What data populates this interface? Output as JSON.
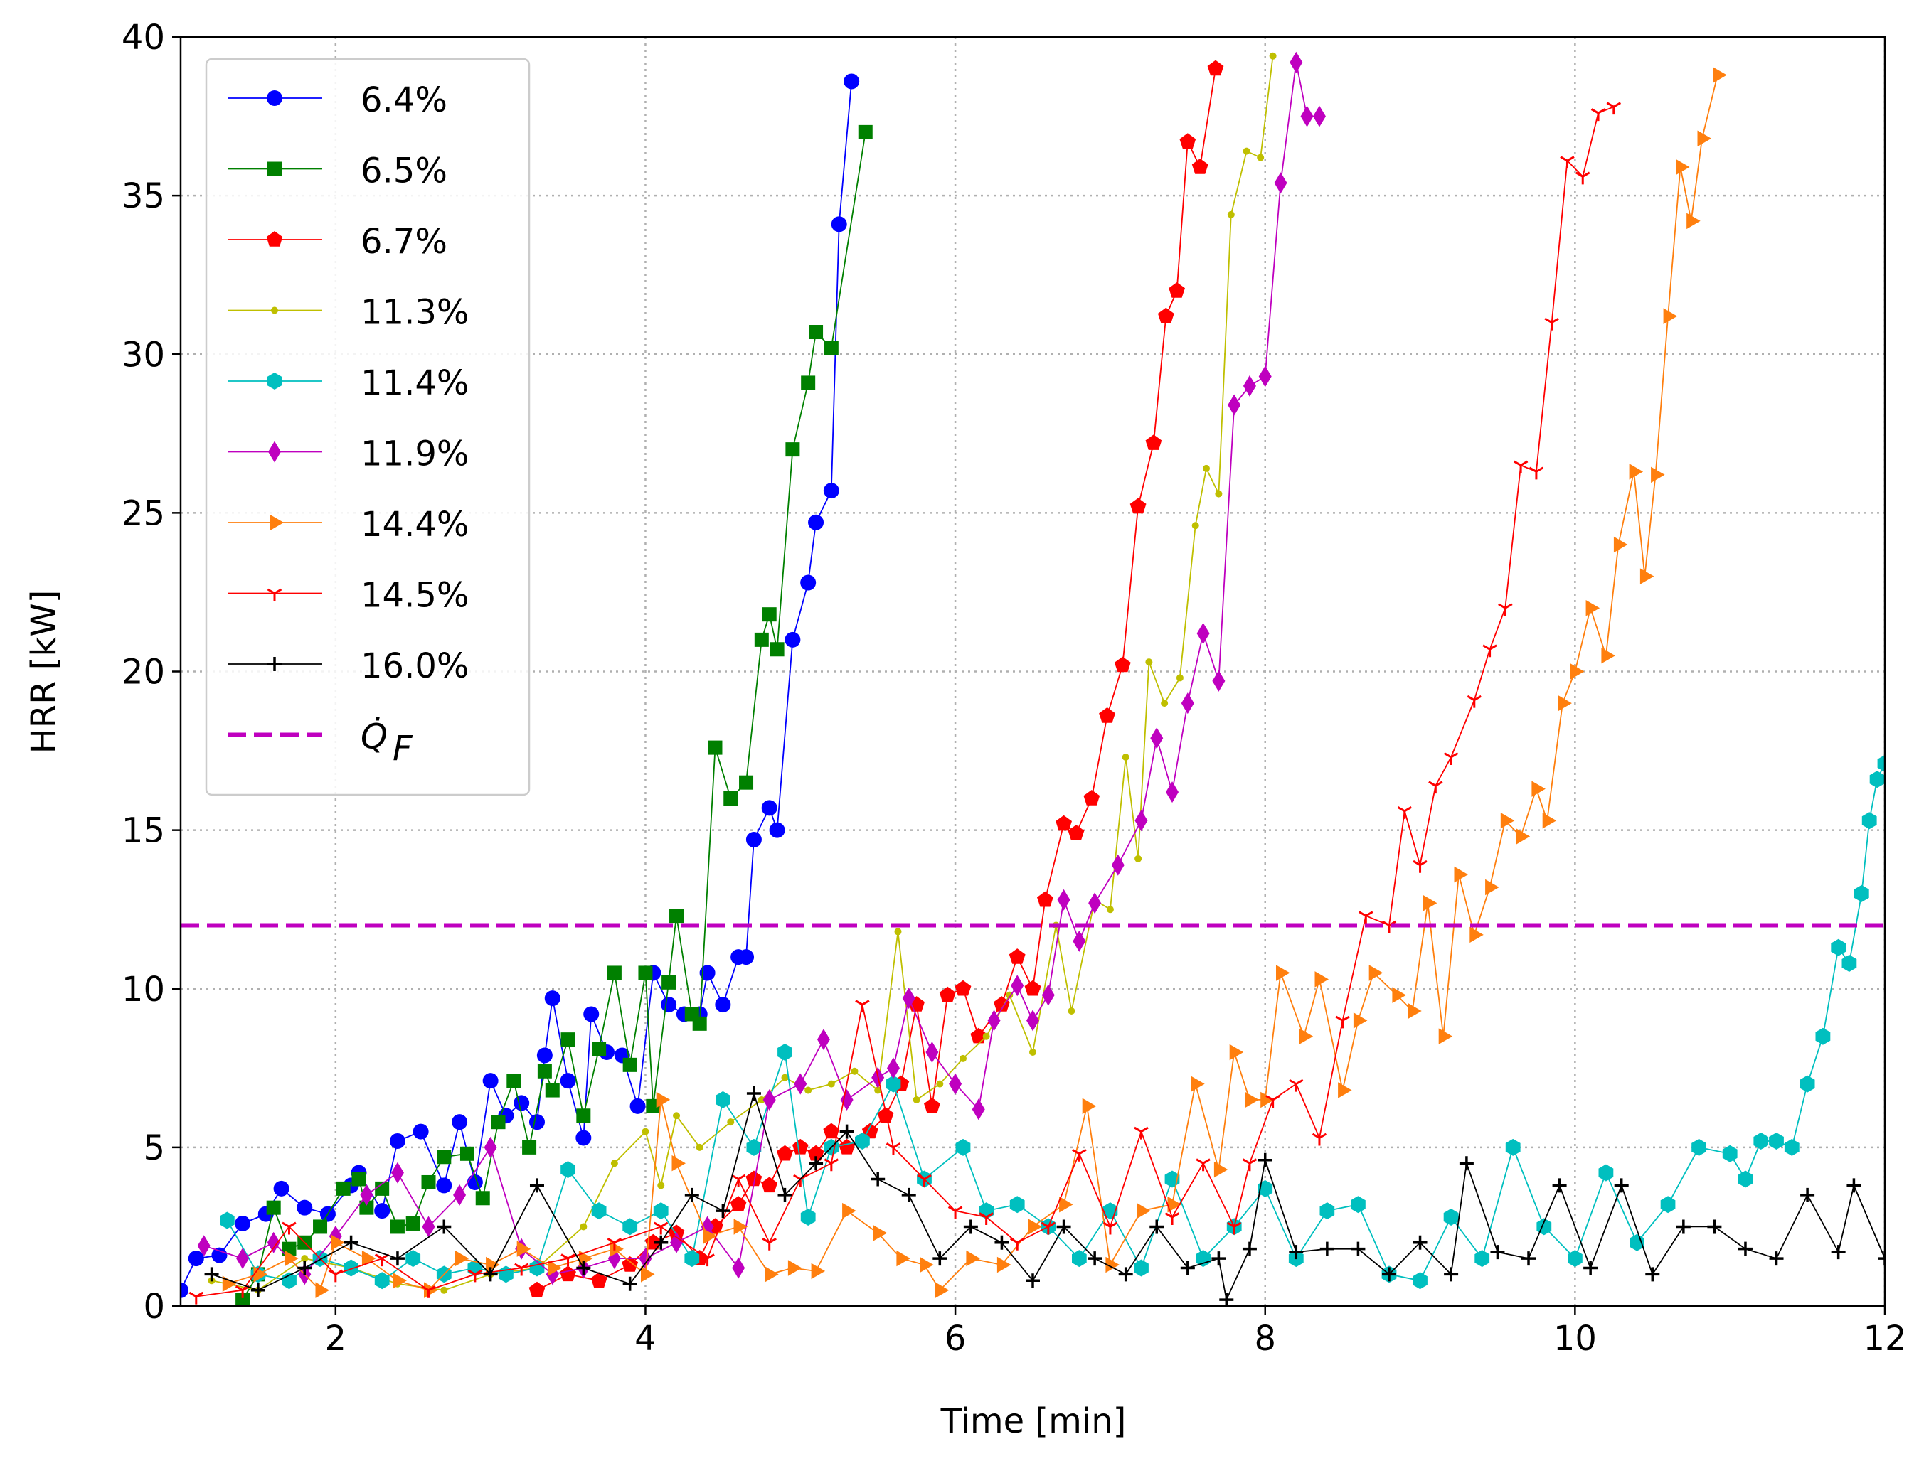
{
  "chart_data": {
    "type": "line",
    "xlabel": "Time [min]",
    "ylabel": "HRR [kW]",
    "xlim": [
      1,
      12
    ],
    "xticks": [
      2,
      4,
      6,
      8,
      10,
      12
    ],
    "ylim": [
      0,
      40
    ],
    "yticks": [
      0,
      5,
      10,
      15,
      20,
      25,
      30,
      35,
      40
    ],
    "grid": true,
    "legend": "upper left",
    "series": [
      {
        "name": "6.4%",
        "color": "#0000ff",
        "marker": "o",
        "x": [
          1.0,
          1.1,
          1.25,
          1.4,
          1.55,
          1.65,
          1.8,
          1.95,
          2.1,
          2.15,
          2.3,
          2.4,
          2.55,
          2.7,
          2.8,
          2.9,
          3.0,
          3.1,
          3.2,
          3.3,
          3.35,
          3.4,
          3.5,
          3.6,
          3.65,
          3.75,
          3.85,
          3.95,
          4.05,
          4.15,
          4.25,
          4.35,
          4.4,
          4.5,
          4.6,
          4.65,
          4.7,
          4.8,
          4.85,
          4.95,
          5.05,
          5.1,
          5.2,
          5.25,
          5.33
        ],
        "values": [
          0.5,
          1.5,
          1.6,
          2.6,
          2.9,
          3.7,
          3.1,
          2.9,
          3.8,
          4.2,
          3.0,
          5.2,
          5.5,
          3.8,
          5.8,
          3.9,
          7.1,
          6.0,
          6.4,
          5.8,
          7.9,
          9.7,
          7.1,
          5.3,
          9.2,
          8.0,
          7.9,
          6.3,
          10.5,
          9.5,
          9.2,
          9.2,
          10.5,
          9.5,
          11.0,
          11.0,
          14.7,
          15.7,
          15.0,
          21.0,
          22.8,
          24.7,
          25.7,
          34.1,
          38.6
        ]
      },
      {
        "name": "6.5%",
        "color": "#008000",
        "marker": "s",
        "x": [
          1.4,
          1.5,
          1.6,
          1.7,
          1.8,
          1.9,
          2.05,
          2.15,
          2.2,
          2.3,
          2.4,
          2.5,
          2.6,
          2.7,
          2.85,
          2.95,
          3.05,
          3.15,
          3.25,
          3.35,
          3.4,
          3.5,
          3.6,
          3.7,
          3.8,
          3.9,
          4.0,
          4.05,
          4.15,
          4.2,
          4.3,
          4.35,
          4.45,
          4.55,
          4.65,
          4.75,
          4.8,
          4.85,
          4.95,
          5.05,
          5.1,
          5.2,
          5.42
        ],
        "values": [
          0.2,
          1.0,
          3.1,
          1.8,
          2.0,
          2.5,
          3.7,
          4.0,
          3.1,
          3.7,
          2.5,
          2.6,
          3.9,
          4.7,
          4.8,
          3.4,
          5.8,
          7.1,
          5.0,
          7.4,
          6.8,
          8.4,
          6.0,
          8.1,
          10.5,
          7.6,
          10.5,
          6.3,
          10.2,
          12.3,
          9.2,
          8.9,
          17.6,
          16.0,
          16.5,
          21.0,
          21.8,
          20.7,
          27.0,
          29.1,
          30.7,
          30.2,
          37.0
        ]
      },
      {
        "name": "6.7%",
        "color": "#ff0000",
        "marker": "p",
        "x": [
          3.3,
          3.5,
          3.7,
          3.9,
          4.05,
          4.2,
          4.35,
          4.45,
          4.6,
          4.7,
          4.8,
          4.9,
          5.0,
          5.1,
          5.2,
          5.3,
          5.45,
          5.55,
          5.65,
          5.75,
          5.85,
          5.95,
          6.05,
          6.15,
          6.3,
          6.4,
          6.5,
          6.58,
          6.7,
          6.78,
          6.88,
          6.98,
          7.08,
          7.18,
          7.28,
          7.36,
          7.43,
          7.5,
          7.58,
          7.68
        ],
        "values": [
          0.5,
          1.0,
          0.8,
          1.3,
          2.0,
          2.3,
          1.5,
          2.5,
          3.2,
          4.0,
          3.8,
          4.8,
          5.0,
          4.8,
          5.5,
          5.0,
          5.5,
          6.0,
          7.0,
          9.5,
          6.3,
          9.8,
          10.0,
          8.5,
          9.5,
          11.0,
          10.0,
          12.8,
          15.2,
          14.9,
          16.0,
          18.6,
          20.2,
          25.2,
          27.2,
          31.2,
          32.0,
          36.7,
          35.9,
          39.0
        ]
      },
      {
        "name": "11.3%",
        "color": "#bfbf00",
        "marker": ".",
        "x": [
          1.2,
          1.5,
          1.8,
          2.1,
          2.4,
          2.7,
          3.0,
          3.3,
          3.6,
          3.8,
          4.0,
          4.1,
          4.2,
          4.35,
          4.55,
          4.75,
          4.9,
          5.05,
          5.2,
          5.35,
          5.5,
          5.63,
          5.75,
          5.9,
          6.05,
          6.2,
          6.35,
          6.5,
          6.65,
          6.75,
          6.9,
          7.0,
          7.1,
          7.18,
          7.25,
          7.35,
          7.45,
          7.55,
          7.62,
          7.7,
          7.78,
          7.88,
          7.97,
          8.05
        ],
        "values": [
          0.8,
          0.5,
          1.5,
          1.2,
          0.7,
          0.5,
          1.0,
          1.2,
          2.5,
          4.5,
          5.5,
          3.8,
          6.0,
          5.0,
          5.8,
          6.5,
          7.2,
          6.8,
          7.0,
          7.4,
          6.8,
          11.8,
          6.5,
          7.0,
          7.8,
          8.5,
          9.8,
          8.0,
          12.0,
          9.3,
          12.8,
          12.5,
          17.3,
          14.1,
          20.3,
          19.0,
          19.8,
          24.6,
          26.4,
          25.6,
          34.4,
          36.4,
          36.2,
          39.4
        ]
      },
      {
        "name": "11.4%",
        "color": "#00bfbf",
        "marker": "h",
        "x": [
          1.3,
          1.5,
          1.7,
          1.9,
          2.1,
          2.3,
          2.5,
          2.7,
          2.9,
          3.1,
          3.3,
          3.5,
          3.7,
          3.9,
          4.1,
          4.3,
          4.5,
          4.7,
          4.9,
          5.05,
          5.2,
          5.4,
          5.6,
          5.8,
          6.05,
          6.2,
          6.4,
          6.6,
          6.8,
          7.0,
          7.2,
          7.4,
          7.6,
          7.8,
          8.0,
          8.2,
          8.4,
          8.6,
          8.8,
          9.0,
          9.2,
          9.4,
          9.6,
          9.8,
          10.0,
          10.2,
          10.4,
          10.6,
          10.8,
          11.0,
          11.1,
          11.2,
          11.3,
          11.4,
          11.5,
          11.6,
          11.7,
          11.77,
          11.85,
          11.9,
          11.95,
          12.0
        ],
        "values": [
          2.7,
          1.0,
          0.8,
          1.5,
          1.2,
          0.8,
          1.5,
          1.0,
          1.2,
          1.0,
          1.2,
          4.3,
          3.0,
          2.5,
          3.0,
          1.5,
          6.5,
          5.0,
          8.0,
          2.8,
          5.0,
          5.2,
          7.0,
          4.0,
          5.0,
          3.0,
          3.2,
          2.5,
          1.5,
          3.0,
          1.2,
          4.0,
          1.5,
          2.5,
          3.7,
          1.5,
          3.0,
          3.2,
          1.0,
          0.8,
          2.8,
          1.5,
          5.0,
          2.5,
          1.5,
          4.2,
          2.0,
          3.2,
          5.0,
          4.8,
          4.0,
          5.2,
          5.2,
          5.0,
          7.0,
          8.5,
          11.3,
          10.8,
          13.0,
          15.3,
          16.6,
          17.1
        ]
      },
      {
        "name": "11.9%",
        "color": "#bf00bf",
        "marker": "d",
        "x": [
          1.15,
          1.4,
          1.6,
          1.8,
          2.0,
          2.2,
          2.4,
          2.6,
          2.8,
          3.0,
          3.2,
          3.4,
          3.6,
          3.8,
          4.0,
          4.2,
          4.4,
          4.6,
          4.8,
          5.0,
          5.15,
          5.3,
          5.5,
          5.6,
          5.7,
          5.85,
          6.0,
          6.15,
          6.25,
          6.4,
          6.5,
          6.6,
          6.7,
          6.8,
          6.9,
          7.05,
          7.2,
          7.3,
          7.4,
          7.5,
          7.6,
          7.7,
          7.8,
          7.9,
          8.0,
          8.1,
          8.2,
          8.27,
          8.35
        ],
        "values": [
          1.9,
          1.5,
          2.0,
          1.0,
          2.2,
          3.5,
          4.2,
          2.5,
          3.5,
          5.0,
          1.8,
          1.0,
          1.2,
          1.5,
          1.5,
          2.0,
          2.5,
          1.2,
          6.5,
          7.0,
          8.4,
          6.5,
          7.2,
          7.5,
          9.7,
          8.0,
          7.0,
          6.2,
          9.0,
          10.1,
          9.0,
          9.8,
          12.8,
          11.5,
          12.7,
          13.9,
          15.3,
          17.9,
          16.2,
          19.0,
          21.2,
          19.7,
          28.4,
          29.0,
          29.3,
          35.4,
          39.2,
          37.5,
          37.5
        ]
      },
      {
        "name": "14.4%",
        "color": "#ff7f0e",
        "marker": ">",
        "x": [
          1.3,
          1.5,
          1.7,
          1.9,
          2.0,
          2.2,
          2.4,
          2.6,
          2.8,
          3.0,
          3.2,
          3.4,
          3.6,
          3.8,
          4.0,
          4.1,
          4.2,
          4.4,
          4.6,
          4.8,
          4.95,
          5.1,
          5.3,
          5.5,
          5.65,
          5.8,
          5.9,
          6.1,
          6.3,
          6.5,
          6.7,
          6.85,
          7.0,
          7.2,
          7.4,
          7.55,
          7.7,
          7.8,
          7.9,
          8.0,
          8.1,
          8.25,
          8.35,
          8.5,
          8.6,
          8.7,
          8.85,
          8.95,
          9.05,
          9.15,
          9.25,
          9.35,
          9.45,
          9.55,
          9.65,
          9.75,
          9.82,
          9.92,
          10.0,
          10.1,
          10.2,
          10.28,
          10.38,
          10.45,
          10.52,
          10.6,
          10.68,
          10.75,
          10.82,
          10.92
        ],
        "values": [
          0.7,
          1.0,
          1.5,
          0.5,
          2.0,
          1.5,
          0.8,
          0.5,
          1.5,
          1.3,
          1.8,
          1.2,
          1.5,
          1.8,
          1.0,
          6.5,
          4.5,
          2.2,
          2.5,
          1.0,
          1.2,
          1.1,
          3.0,
          2.3,
          1.5,
          1.3,
          0.5,
          1.5,
          1.3,
          2.5,
          3.2,
          6.3,
          1.3,
          3.0,
          3.2,
          7.0,
          4.3,
          8.0,
          6.5,
          6.5,
          10.5,
          8.5,
          10.3,
          6.8,
          9.0,
          10.5,
          9.8,
          9.3,
          12.7,
          8.5,
          13.6,
          11.7,
          13.2,
          15.3,
          14.8,
          16.3,
          15.3,
          19.0,
          20.0,
          22.0,
          20.5,
          24.0,
          26.3,
          23.0,
          26.2,
          31.2,
          35.9,
          34.2,
          36.8,
          38.8
        ]
      },
      {
        "name": "14.5%",
        "color": "#ff0000",
        "marker": "1",
        "x": [
          1.1,
          1.4,
          1.7,
          2.0,
          2.3,
          2.6,
          2.9,
          3.2,
          3.5,
          3.8,
          4.1,
          4.4,
          4.6,
          4.8,
          5.0,
          5.2,
          5.4,
          5.6,
          5.8,
          6.0,
          6.2,
          6.4,
          6.6,
          6.8,
          7.0,
          7.2,
          7.4,
          7.6,
          7.8,
          7.9,
          8.05,
          8.2,
          8.35,
          8.5,
          8.65,
          8.8,
          8.9,
          9.0,
          9.1,
          9.2,
          9.35,
          9.45,
          9.55,
          9.65,
          9.75,
          9.85,
          9.95,
          10.05,
          10.15,
          10.25
        ],
        "values": [
          0.3,
          0.5,
          2.5,
          1.0,
          1.5,
          0.5,
          1.0,
          1.2,
          1.5,
          2.0,
          2.5,
          1.5,
          4.0,
          2.0,
          4.0,
          4.5,
          9.5,
          5.0,
          4.0,
          3.0,
          2.8,
          2.0,
          2.5,
          4.8,
          2.5,
          5.5,
          2.8,
          4.5,
          2.5,
          4.5,
          6.5,
          7.0,
          5.3,
          9.0,
          12.3,
          12.0,
          15.6,
          13.9,
          16.4,
          17.3,
          19.1,
          20.7,
          22.0,
          26.5,
          26.3,
          31.0,
          36.1,
          35.6,
          37.6,
          37.8
        ]
      },
      {
        "name": "16.0%",
        "color": "#000000",
        "marker": "+",
        "x": [
          1.2,
          1.5,
          1.8,
          2.1,
          2.4,
          2.7,
          3.0,
          3.3,
          3.6,
          3.9,
          4.1,
          4.3,
          4.5,
          4.7,
          4.9,
          5.1,
          5.3,
          5.5,
          5.7,
          5.9,
          6.1,
          6.3,
          6.5,
          6.7,
          6.9,
          7.1,
          7.3,
          7.5,
          7.7,
          7.75,
          7.9,
          8.0,
          8.2,
          8.4,
          8.6,
          8.8,
          9.0,
          9.2,
          9.3,
          9.5,
          9.7,
          9.9,
          10.1,
          10.3,
          10.5,
          10.7,
          10.9,
          11.1,
          11.3,
          11.5,
          11.7,
          11.8,
          12.0
        ],
        "values": [
          1.0,
          0.5,
          1.2,
          2.0,
          1.5,
          2.5,
          1.0,
          3.8,
          1.2,
          0.7,
          2.0,
          3.5,
          3.0,
          6.7,
          3.5,
          4.5,
          5.5,
          4.0,
          3.5,
          1.5,
          2.5,
          2.0,
          0.8,
          2.5,
          1.5,
          1.0,
          2.5,
          1.2,
          1.5,
          0.2,
          1.8,
          4.6,
          1.7,
          1.8,
          1.8,
          1.0,
          2.0,
          1.0,
          4.5,
          1.7,
          1.5,
          3.8,
          1.2,
          3.8,
          1.0,
          2.5,
          2.5,
          1.8,
          1.5,
          3.5,
          1.7,
          3.8,
          1.5
        ]
      }
    ],
    "hline": {
      "name": "Q̇",
      "subscript": "F",
      "value": 12,
      "color": "#bf00bf"
    }
  }
}
